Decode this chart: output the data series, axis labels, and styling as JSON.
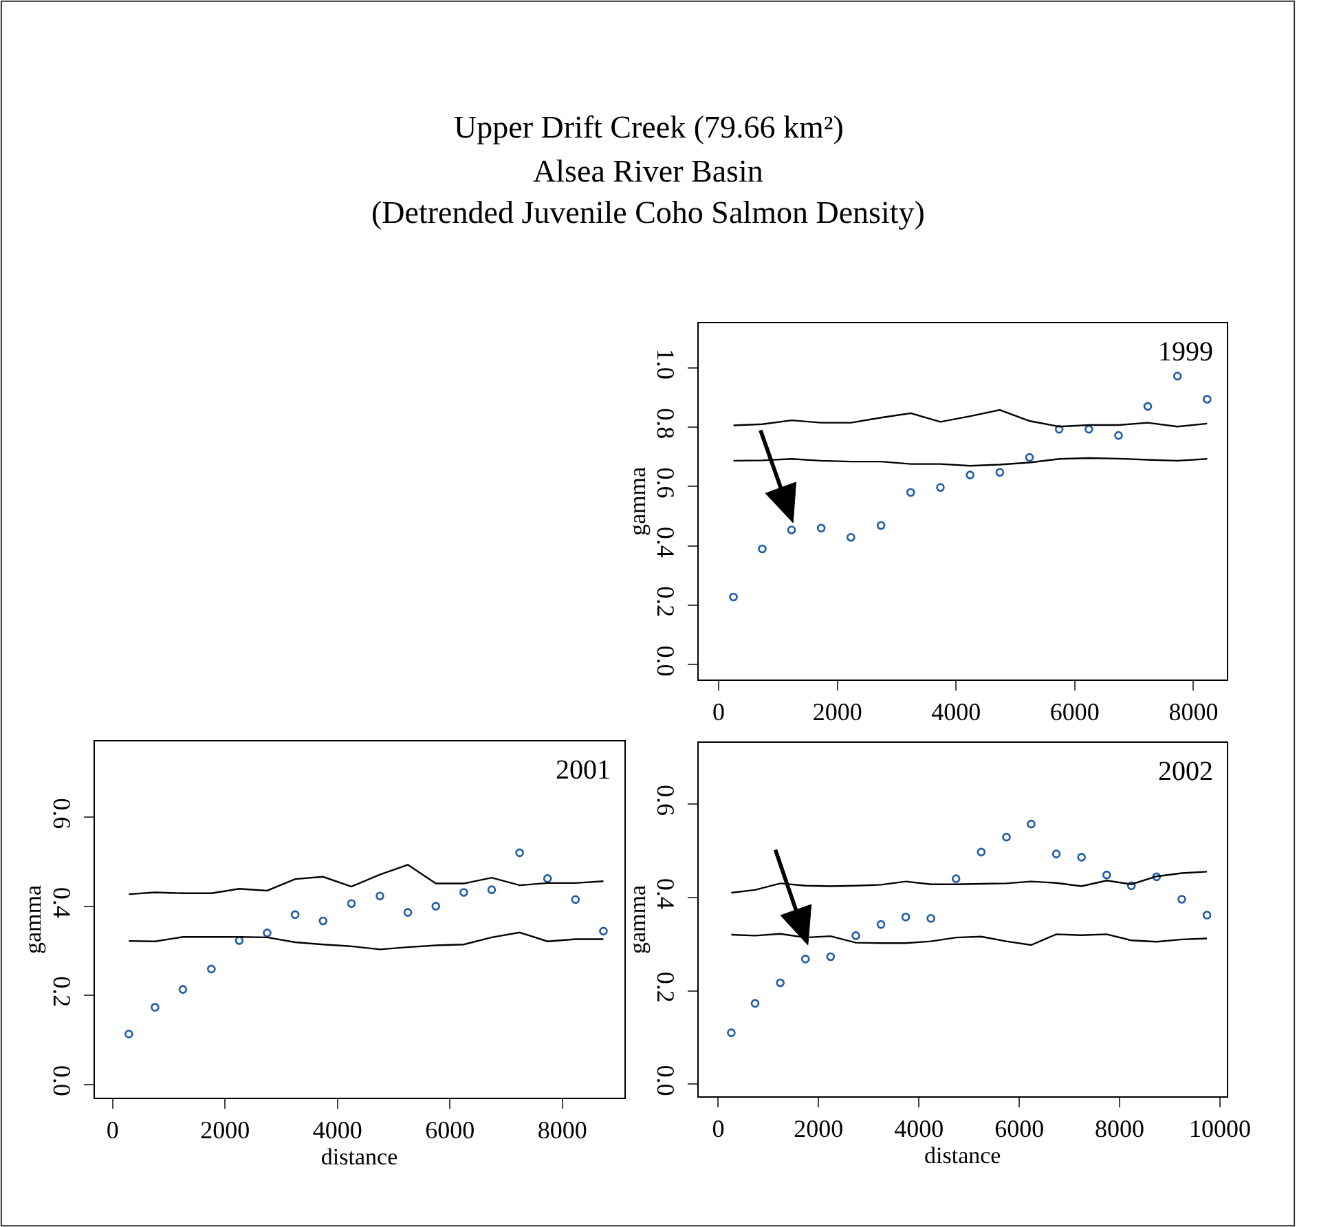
{
  "chart_data": [
    {
      "type": "scatter",
      "title": "Upper Drift Creek (79.66 km²)",
      "subtitle": "Alsea River Basin\n(Detrended Juvenile Coho Salmon Density)",
      "ylabel": "gamma",
      "annotations": [
        "1999"
      ],
      "xlim": [
        -340,
        8560
      ],
      "xticks": [
        0,
        2000,
        4000,
        6000,
        8000
      ],
      "ylim": [
        -0.05,
        1.15
      ],
      "yticks": [
        {
          "value": 0,
          "label": "0.0"
        },
        {
          "value": 0.2,
          "label": "0.2"
        },
        {
          "value": 0.4,
          "label": "0.4"
        },
        {
          "value": 0.6,
          "label": "0.6"
        },
        {
          "value": 0.8,
          "label": "0.8"
        },
        {
          "value": 1,
          "label": "1.0"
        }
      ],
      "series": [
        {
          "marker": "circle",
          "color": "#1f5ca8",
          "x": [
            250,
            735,
            1228,
            1728,
            2228,
            2736,
            3236,
            3736,
            4237,
            4737,
            5237,
            5737,
            6237,
            6737,
            7230,
            7730,
            8230
          ],
          "values": [
            0.228,
            0.39,
            0.454,
            0.46,
            0.429,
            0.469,
            0.58,
            0.597,
            0.639,
            0.648,
            0.698,
            0.793,
            0.793,
            0.772,
            0.87,
            0.972,
            0.894
          ]
        },
        {
          "type": "line",
          "color": "#000000",
          "x": [
            250,
            735,
            1228,
            1728,
            2228,
            2736,
            3236,
            3736,
            4237,
            4737,
            5237,
            5737,
            6237,
            6737,
            7230,
            7730,
            8230
          ],
          "values": [
            0.806,
            0.81,
            0.823,
            0.815,
            0.815,
            0.832,
            0.847,
            0.818,
            0.837,
            0.858,
            0.821,
            0.802,
            0.807,
            0.807,
            0.815,
            0.802,
            0.812
          ]
        },
        {
          "type": "line",
          "color": "#000000",
          "x": [
            250,
            735,
            1228,
            1728,
            2228,
            2736,
            3236,
            3736,
            4237,
            4737,
            5237,
            5737,
            6237,
            6737,
            7230,
            7730,
            8230
          ],
          "values": [
            0.687,
            0.688,
            0.693,
            0.687,
            0.684,
            0.684,
            0.676,
            0.676,
            0.67,
            0.674,
            0.681,
            0.693,
            0.696,
            0.694,
            0.69,
            0.687,
            0.693
          ]
        }
      ]
    },
    {
      "type": "scatter",
      "xlabel": "distance",
      "ylabel": "gamma",
      "annotations": [
        "2001"
      ],
      "xlim": [
        -321,
        9098
      ],
      "xticks": [
        0,
        2000,
        4000,
        6000,
        8000
      ],
      "ylim": [
        -0.03,
        0.77
      ],
      "yticks": [
        {
          "value": 0,
          "label": "0.0"
        },
        {
          "value": 0.2,
          "label": "0.2"
        },
        {
          "value": 0.4,
          "label": "0.4"
        },
        {
          "value": 0.6,
          "label": "0.6"
        }
      ],
      "series": [
        {
          "marker": "circle",
          "color": "#1f5ca8",
          "x": [
            289,
            754,
            1250,
            1756,
            2252,
            2749,
            3246,
            3743,
            4248,
            4754,
            5251,
            5748,
            6245,
            6742,
            7239,
            7735,
            8232,
            8729
          ],
          "values": [
            0.113,
            0.173,
            0.213,
            0.259,
            0.323,
            0.34,
            0.381,
            0.367,
            0.406,
            0.423,
            0.386,
            0.4,
            0.431,
            0.437,
            0.52,
            0.462,
            0.415,
            0.344
          ]
        },
        {
          "type": "line",
          "color": "#000000",
          "x": [
            289,
            754,
            1250,
            1756,
            2252,
            2749,
            3246,
            3743,
            4248,
            4754,
            5251,
            5748,
            6245,
            6742,
            7239,
            7735,
            8232,
            8729
          ],
          "values": [
            0.427,
            0.431,
            0.429,
            0.429,
            0.439,
            0.435,
            0.461,
            0.466,
            0.444,
            0.471,
            0.493,
            0.451,
            0.451,
            0.464,
            0.447,
            0.452,
            0.452,
            0.456
          ]
        },
        {
          "type": "line",
          "color": "#000000",
          "x": [
            289,
            754,
            1250,
            1756,
            2252,
            2749,
            3246,
            3743,
            4248,
            4754,
            5251,
            5748,
            6245,
            6742,
            7239,
            7735,
            8232,
            8729
          ],
          "values": [
            0.322,
            0.321,
            0.331,
            0.331,
            0.331,
            0.33,
            0.319,
            0.314,
            0.31,
            0.303,
            0.308,
            0.312,
            0.314,
            0.33,
            0.341,
            0.321,
            0.326,
            0.326
          ]
        }
      ]
    },
    {
      "type": "scatter",
      "xlabel": "distance",
      "ylabel": "gamma",
      "annotations": [
        "2002"
      ],
      "xlim": [
        -394,
        10135
      ],
      "xticks": [
        0,
        2000,
        4000,
        6000,
        8000,
        10000
      ],
      "ylim": [
        -0.026,
        0.731
      ],
      "yticks": [
        {
          "value": 0,
          "label": "0.0"
        },
        {
          "value": 0.2,
          "label": "0.2"
        },
        {
          "value": 0.4,
          "label": "0.4"
        },
        {
          "value": 0.6,
          "label": "0.6"
        }
      ],
      "series": [
        {
          "marker": "circle",
          "color": "#1f5ca8",
          "x": [
            260,
            735,
            1237,
            1738,
            2240,
            2742,
            3244,
            3737,
            4239,
            4740,
            5242,
            5744,
            6237,
            6739,
            7241,
            7743,
            8235,
            8737,
            9239,
            9741
          ],
          "values": [
            0.11,
            0.173,
            0.217,
            0.268,
            0.273,
            0.318,
            0.342,
            0.358,
            0.355,
            0.44,
            0.497,
            0.529,
            0.557,
            0.493,
            0.486,
            0.448,
            0.425,
            0.444,
            0.396,
            0.362
          ]
        },
        {
          "type": "line",
          "color": "#000000",
          "x": [
            260,
            735,
            1237,
            1738,
            2240,
            2742,
            3244,
            3737,
            4239,
            4740,
            5242,
            5744,
            6237,
            6739,
            7241,
            7743,
            8235,
            8737,
            9239,
            9741
          ],
          "values": [
            0.41,
            0.416,
            0.43,
            0.425,
            0.424,
            0.425,
            0.427,
            0.434,
            0.428,
            0.428,
            0.429,
            0.43,
            0.434,
            0.431,
            0.424,
            0.436,
            0.428,
            0.445,
            0.452,
            0.455
          ]
        },
        {
          "type": "line",
          "color": "#000000",
          "x": [
            260,
            735,
            1237,
            1738,
            2240,
            2742,
            3244,
            3737,
            4239,
            4740,
            5242,
            5744,
            6237,
            6739,
            7241,
            7743,
            8235,
            8737,
            9239,
            9741
          ],
          "values": [
            0.32,
            0.318,
            0.322,
            0.314,
            0.317,
            0.303,
            0.302,
            0.302,
            0.306,
            0.314,
            0.316,
            0.306,
            0.298,
            0.321,
            0.319,
            0.321,
            0.308,
            0.305,
            0.31,
            0.312
          ]
        }
      ]
    }
  ]
}
